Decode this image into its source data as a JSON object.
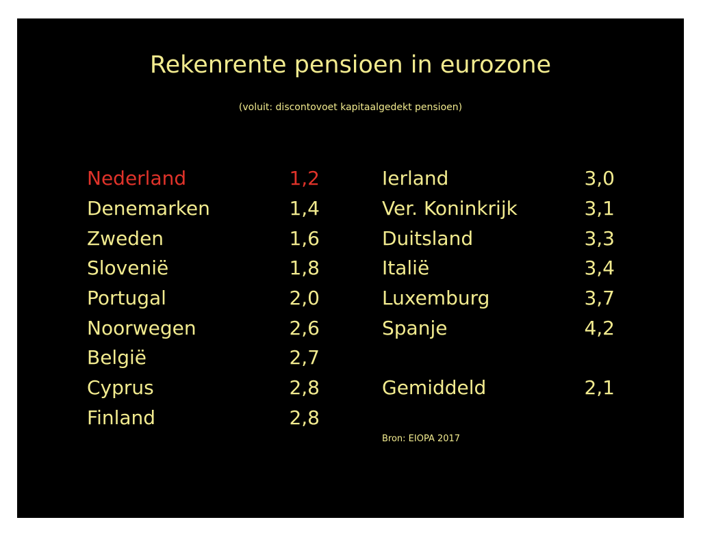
{
  "slide": {
    "title": "Rekenrente pensioen in eurozone",
    "subtitle": "(voluit: discontovoet kapitaalgedekt pensioen)",
    "source": "Bron: EIOPA 2017",
    "colors": {
      "background": "#000000",
      "text": "#f2eb8f",
      "highlight": "#e0332a"
    }
  },
  "left_column": [
    {
      "country": "Nederland",
      "value": "1,2",
      "highlight": true
    },
    {
      "country": "Denemarken",
      "value": "1,4"
    },
    {
      "country": "Zweden",
      "value": "1,6"
    },
    {
      "country": "Slovenië",
      "value": "1,8"
    },
    {
      "country": "Portugal",
      "value": "2,0"
    },
    {
      "country": "Noorwegen",
      "value": "2,6"
    },
    {
      "country": "België",
      "value": "2,7"
    },
    {
      "country": "Cyprus",
      "value": "2,8"
    },
    {
      "country": "Finland",
      "value": "2,8"
    }
  ],
  "right_column": [
    {
      "country": "Ierland",
      "value": "3,0"
    },
    {
      "country": "Ver. Koninkrijk",
      "value": "3,1"
    },
    {
      "country": "Duitsland",
      "value": "3,3"
    },
    {
      "country": "Italië",
      "value": "3,4"
    },
    {
      "country": "Luxemburg",
      "value": "3,7"
    },
    {
      "country": "Spanje",
      "value": "4,2"
    }
  ],
  "average": {
    "label": "Gemiddeld",
    "value": "2,1"
  }
}
